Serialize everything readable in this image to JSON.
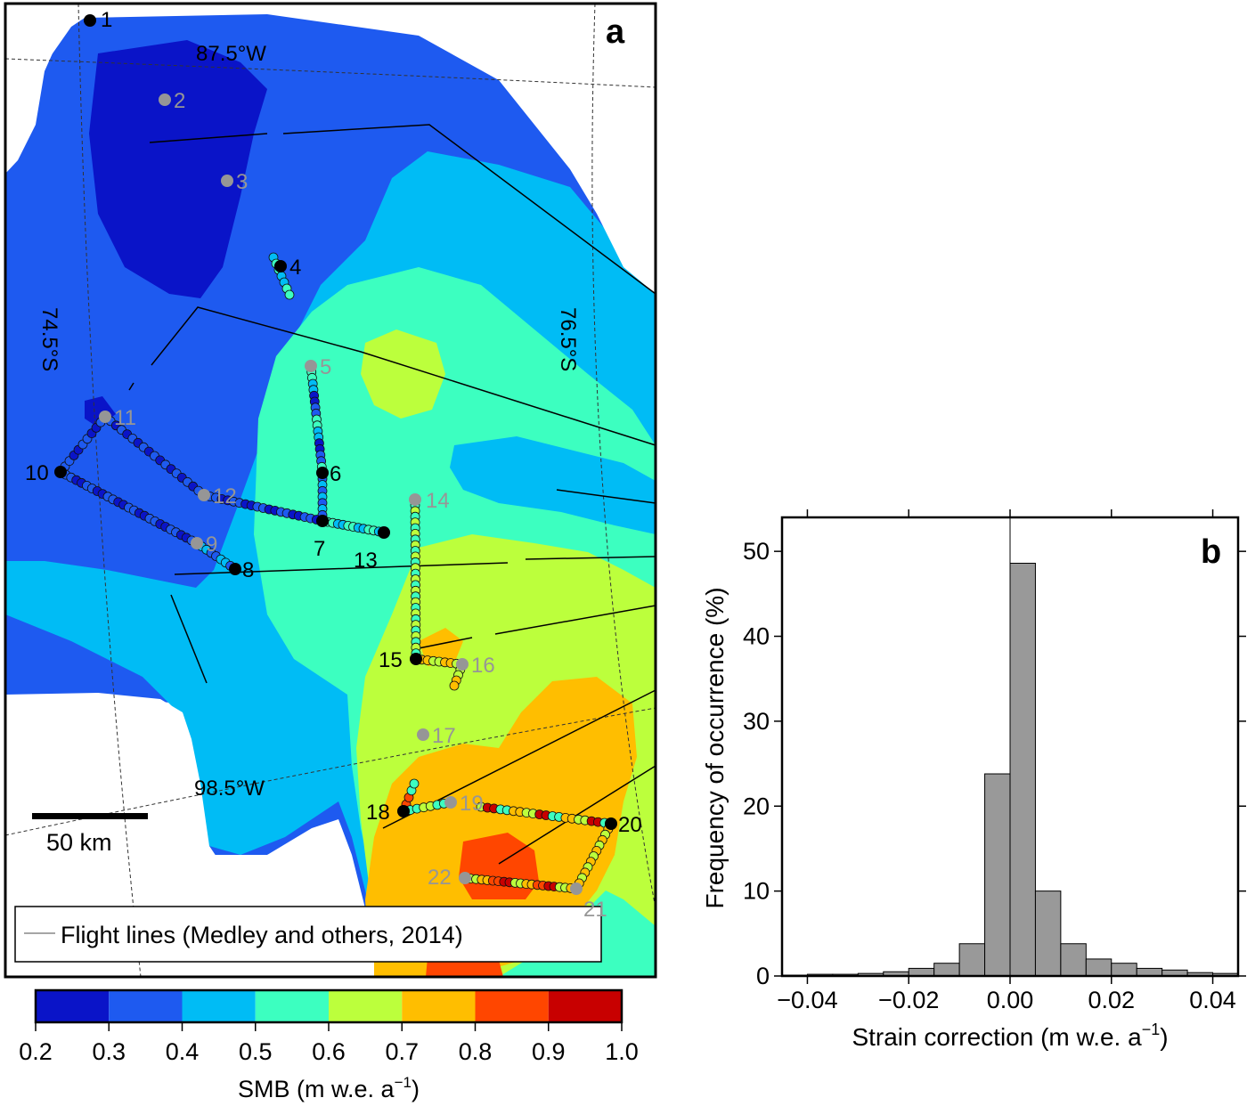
{
  "colors": {
    "smb_0.2_0.3": "#0a14c8",
    "smb_0.3_0.4": "#1e5af0",
    "smb_0.4_0.5": "#00bcf5",
    "smb_0.5_0.6": "#3cffc0",
    "smb_0.6_0.7": "#bcff3c",
    "smb_0.7_0.8": "#ffbe00",
    "smb_0.8_0.9": "#ff4600",
    "smb_0.9_1.0": "#c80000",
    "histogram_bar": "#999999",
    "core_black": "#000000",
    "core_grey": "#969696"
  },
  "panel_a": {
    "label": "a",
    "graticule_labels": {
      "lon_top": "87.5°W",
      "lon_bottom": "98.5°W",
      "lat_left": "74.5°S",
      "lat_right": "76.5°S"
    },
    "scale_bar": "50 km",
    "legend": "Flight lines (Medley and others, 2014)",
    "sites": [
      {
        "id": "1",
        "style": "black"
      },
      {
        "id": "2",
        "style": "grey"
      },
      {
        "id": "3",
        "style": "grey"
      },
      {
        "id": "4",
        "style": "black"
      },
      {
        "id": "5",
        "style": "grey"
      },
      {
        "id": "6",
        "style": "black"
      },
      {
        "id": "7",
        "style": "black"
      },
      {
        "id": "8",
        "style": "black"
      },
      {
        "id": "9",
        "style": "grey"
      },
      {
        "id": "10",
        "style": "black"
      },
      {
        "id": "11",
        "style": "grey"
      },
      {
        "id": "12",
        "style": "grey"
      },
      {
        "id": "13",
        "style": "black"
      },
      {
        "id": "14",
        "style": "grey"
      },
      {
        "id": "15",
        "style": "black"
      },
      {
        "id": "16",
        "style": "grey"
      },
      {
        "id": "17",
        "style": "grey"
      },
      {
        "id": "18",
        "style": "black"
      },
      {
        "id": "19",
        "style": "grey"
      },
      {
        "id": "20",
        "style": "black"
      },
      {
        "id": "21",
        "style": "grey"
      },
      {
        "id": "22",
        "style": "grey"
      }
    ],
    "colorbar": {
      "ticks": [
        "0.2",
        "0.3",
        "0.4",
        "0.5",
        "0.6",
        "0.7",
        "0.8",
        "0.9",
        "1.0"
      ],
      "label_main": "SMB (m w.e. a",
      "label_sup": "−1",
      "label_close": ")"
    }
  },
  "chart_data": [
    {
      "type": "heatmap",
      "panel": "a",
      "color_scale": {
        "bounds": [
          0.2,
          0.3,
          0.4,
          0.5,
          0.6,
          0.7,
          0.8,
          0.9,
          1.0
        ],
        "colors": [
          "#0a14c8",
          "#1e5af0",
          "#00bcf5",
          "#3cffc0",
          "#bcff3c",
          "#ffbe00",
          "#ff4600",
          "#c80000"
        ]
      },
      "colorbar_label": "SMB (m w.e. a−1)",
      "legend": [
        "Flight lines (Medley and others, 2014)"
      ]
    },
    {
      "type": "bar",
      "panel": "b",
      "label": "b",
      "xlabel": "Strain correction (m w.e. a",
      "xlabel_sup": "−1",
      "xlabel_close": ")",
      "ylabel": "Frequency of occurrence (%)",
      "xlim": [
        -0.045,
        0.045
      ],
      "ylim": [
        0,
        54
      ],
      "xticks": [
        -0.04,
        -0.02,
        0.0,
        0.02,
        0.04
      ],
      "xtick_labels": [
        "−0.04",
        "−0.02",
        "0.00",
        "0.02",
        "0.04"
      ],
      "yticks": [
        0,
        10,
        20,
        30,
        40,
        50
      ],
      "ytick_labels": [
        "0",
        "10",
        "20",
        "30",
        "40",
        "50"
      ],
      "bin_width": 0.005,
      "bin_lefts": [
        -0.045,
        -0.04,
        -0.035,
        -0.03,
        -0.025,
        -0.02,
        -0.015,
        -0.01,
        -0.005,
        0.0,
        0.005,
        0.01,
        0.015,
        0.02,
        0.025,
        0.03,
        0.035,
        0.04
      ],
      "values": [
        0.1,
        0.2,
        0.2,
        0.3,
        0.5,
        0.9,
        1.5,
        3.8,
        23.8,
        48.6,
        10.0,
        3.8,
        2.0,
        1.5,
        0.9,
        0.7,
        0.4,
        0.3
      ]
    }
  ]
}
